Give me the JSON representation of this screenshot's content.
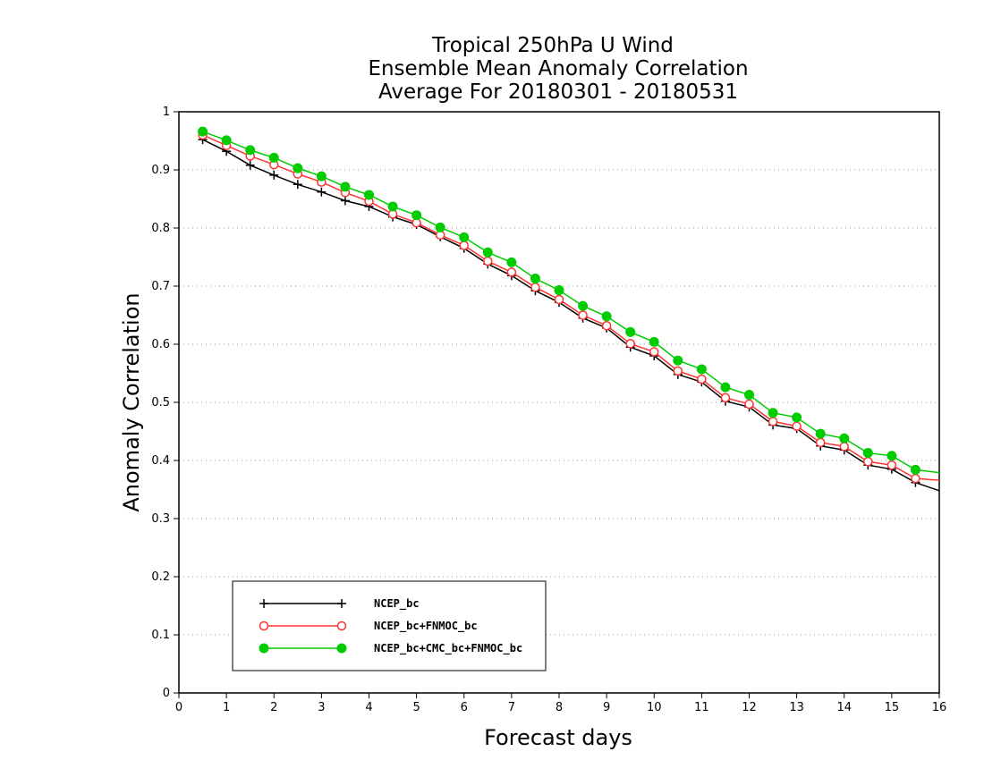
{
  "chart_data": {
    "type": "line",
    "title_lines": [
      "Tropical 250hPa U Wind",
      "Ensemble Mean Anomaly Correlation",
      "Average For 20180301 - 20180531"
    ],
    "xlabel": "Forecast days",
    "ylabel": "Anomaly Correlation",
    "xlim": [
      0,
      16
    ],
    "ylim": [
      0,
      1
    ],
    "xticks": [
      "0",
      "1",
      "2",
      "3",
      "4",
      "5",
      "6",
      "7",
      "8",
      "9",
      "10",
      "11",
      "12",
      "13",
      "14",
      "15",
      "16"
    ],
    "yticks": [
      "0",
      "0.1",
      "0.2",
      "0.3",
      "0.4",
      "0.5",
      "0.6",
      "0.7",
      "0.8",
      "0.9",
      "1"
    ],
    "grid": "horizontal dotted",
    "legend_position": "bottom-left",
    "x": [
      0.5,
      1,
      1.5,
      2,
      2.5,
      3,
      3.5,
      4,
      4.5,
      5,
      5.5,
      6,
      6.5,
      7,
      7.5,
      8,
      8.5,
      9,
      9.5,
      10,
      10.5,
      11,
      11.5,
      12,
      12.5,
      13,
      13.5,
      14,
      14.5,
      15,
      15.5,
      16
    ],
    "series": [
      {
        "name": "NCEP_bc",
        "color": "#000000",
        "marker": "plus",
        "values": [
          0.952,
          0.932,
          0.908,
          0.891,
          0.875,
          0.862,
          0.847,
          0.837,
          0.819,
          0.806,
          0.785,
          0.765,
          0.738,
          0.718,
          0.692,
          0.672,
          0.645,
          0.628,
          0.595,
          0.58,
          0.548,
          0.535,
          0.502,
          0.492,
          0.461,
          0.455,
          0.425,
          0.418,
          0.392,
          0.385,
          0.362,
          0.348
        ]
      },
      {
        "name": "NCEP_bc+FNMOC_bc",
        "color": "#ff3333",
        "marker": "open-circle",
        "values": [
          0.96,
          0.942,
          0.924,
          0.909,
          0.893,
          0.879,
          0.861,
          0.846,
          0.824,
          0.809,
          0.788,
          0.77,
          0.743,
          0.724,
          0.698,
          0.677,
          0.65,
          0.632,
          0.601,
          0.587,
          0.554,
          0.54,
          0.508,
          0.497,
          0.467,
          0.459,
          0.431,
          0.424,
          0.398,
          0.392,
          0.369,
          0.366
        ]
      },
      {
        "name": "NCEP_bc+CMC_bc+FNMOC_bc",
        "color": "#00cc00",
        "marker": "filled-circle",
        "values": [
          0.966,
          0.951,
          0.934,
          0.921,
          0.903,
          0.889,
          0.871,
          0.857,
          0.837,
          0.822,
          0.801,
          0.784,
          0.758,
          0.741,
          0.713,
          0.693,
          0.666,
          0.648,
          0.621,
          0.604,
          0.572,
          0.557,
          0.526,
          0.513,
          0.482,
          0.474,
          0.446,
          0.438,
          0.413,
          0.408,
          0.384,
          0.379
        ]
      }
    ]
  }
}
